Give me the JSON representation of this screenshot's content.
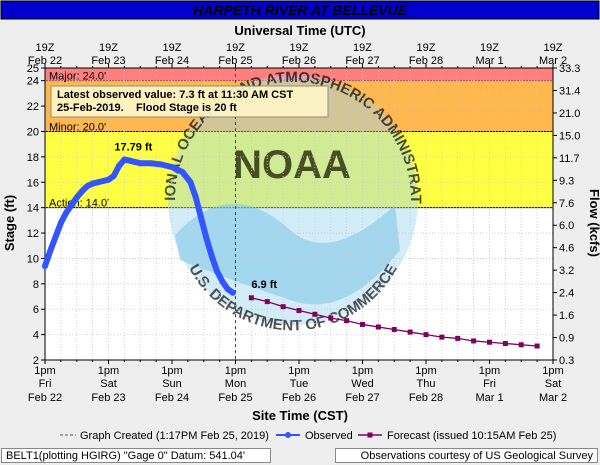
{
  "title": "HARPETH RIVER AT BELLEVUE",
  "top_axis_title": "Universal Time (UTC)",
  "bottom_axis_title": "Site Time (CST)",
  "ylabel_left": "Stage (ft)",
  "ylabel_right": "Flow (kcfs)",
  "watermark_text": "NATIONAL OCEANIC AND ATMOSPHERIC ADMINISTRATION",
  "watermark_bottom_text": "U.S. DEPARTMENT OF COMMERCE",
  "logo_text": "NOAA",
  "legend": {
    "graph_created": "Graph Created (1:17PM Feb 25, 2019)",
    "observed": "Observed",
    "forecast": "Forecast (issued 10:15AM Feb 25)"
  },
  "footer_left": "BELT1(plotting HGIRG) \"Gage 0\" Datum: 541.04'",
  "footer_right": "Observations courtesy of US Geological Survey",
  "info_box": {
    "line1": "Latest observed value: 7.3 ft at 11:30 AM CST",
    "line2_date": "25-Feb-2019.",
    "line2_flood": "Flood Stage is 20 ft"
  },
  "colors": {
    "major": "#ff7f7f",
    "moderate": "#ffb84d",
    "minor": "#ffff44",
    "action": "#ffffff",
    "observed": "#3355ff",
    "forecast": "#800060",
    "title_bg": "#0000cc",
    "info_text": "#3333ff"
  },
  "chart_data": {
    "type": "line",
    "title": "HARPETH RIVER AT BELLEVUE",
    "xlabel": "Site Time (CST)",
    "ylabel": "Stage (ft)",
    "y2label": "Flow (kcfs)",
    "ylim": [
      2,
      25
    ],
    "xlim_hours_from_feb22_1pm": [
      0,
      168
    ],
    "left_ticks": [
      2,
      4,
      6,
      8,
      10,
      12,
      14,
      16,
      18,
      20,
      22,
      24,
      25
    ],
    "right_ticks": [
      {
        "stage": 2.3,
        "label": "0.3"
      },
      {
        "stage": 4.3,
        "label": "0.9"
      },
      {
        "stage": 6.3,
        "label": "1.6"
      },
      {
        "stage": 8.3,
        "label": "2.4"
      },
      {
        "stage": 10.3,
        "label": "3.2"
      },
      {
        "stage": 12.3,
        "label": "4.6"
      },
      {
        "stage": 14.3,
        "label": "6.0"
      },
      {
        "stage": 16.3,
        "label": "7.6"
      },
      {
        "stage": 18.3,
        "label": "9.3"
      },
      {
        "stage": 20.3,
        "label": "11.7"
      },
      {
        "stage": 22.3,
        "label": "15.0"
      },
      {
        "stage": 24.3,
        "label": "21.0"
      },
      {
        "stage": 26.3,
        "label": "31.4"
      },
      {
        "stage": 28.3,
        "label": "33.3"
      }
    ],
    "top_ticks": [
      {
        "t": 0,
        "hour": "19Z",
        "date": "Feb 22"
      },
      {
        "t": 24,
        "hour": "19Z",
        "date": "Feb 23"
      },
      {
        "t": 48,
        "hour": "19Z",
        "date": "Feb 24"
      },
      {
        "t": 72,
        "hour": "19Z",
        "date": "Feb 25"
      },
      {
        "t": 96,
        "hour": "19Z",
        "date": "Feb 26"
      },
      {
        "t": 120,
        "hour": "19Z",
        "date": "Feb 27"
      },
      {
        "t": 144,
        "hour": "19Z",
        "date": "Feb 28"
      },
      {
        "t": 168,
        "hour": "19Z",
        "date": "Mar 1"
      },
      {
        "t": 192,
        "hour": "19Z",
        "date": "Mar 2"
      }
    ],
    "bottom_ticks": [
      {
        "t": 0,
        "time": "1pm",
        "day": "Fri",
        "date": "Feb 22"
      },
      {
        "t": 24,
        "time": "1pm",
        "day": "Sat",
        "date": "Feb 23"
      },
      {
        "t": 48,
        "time": "1pm",
        "day": "Sun",
        "date": "Feb 24"
      },
      {
        "t": 72,
        "time": "1pm",
        "day": "Mon",
        "date": "Feb 25"
      },
      {
        "t": 96,
        "time": "1pm",
        "day": "Tue",
        "date": "Feb 26"
      },
      {
        "t": 120,
        "time": "1pm",
        "day": "Wed",
        "date": "Feb 27"
      },
      {
        "t": 144,
        "time": "1pm",
        "day": "Thu",
        "date": "Feb 28"
      },
      {
        "t": 168,
        "time": "1pm",
        "day": "Fri",
        "date": "Mar 1"
      },
      {
        "t": 192,
        "time": "1pm",
        "day": "Sat",
        "date": "Mar 2"
      }
    ],
    "flood_categories": [
      {
        "name": "Major",
        "label": "Major: 24.0'",
        "from": 24,
        "to": 25,
        "color": "#ff7f7f"
      },
      {
        "name": "Moderate",
        "label": "",
        "from": 20,
        "to": 24,
        "color": "#ffb84d"
      },
      {
        "name": "Minor",
        "label": "Minor: 20.0'",
        "from": 14,
        "to": 20,
        "color": "#ffff44"
      },
      {
        "name": "Action",
        "label": "Action: 14.0'",
        "from": 14,
        "to": 14,
        "color": "#ffff44"
      }
    ],
    "graph_created_t": 72,
    "series": [
      {
        "name": "Observed",
        "color": "#3355ff",
        "x": [
          0,
          2,
          4,
          6,
          8,
          10,
          12,
          14,
          16,
          18,
          20,
          22,
          24,
          26,
          28,
          30,
          32,
          34,
          36,
          40,
          44,
          48,
          52,
          55,
          57,
          59,
          61,
          63,
          65,
          67,
          69,
          71
        ],
        "y": [
          9.4,
          10.6,
          11.7,
          12.8,
          13.6,
          14.2,
          14.8,
          15.3,
          15.7,
          15.9,
          16.0,
          16.1,
          16.2,
          16.5,
          17.3,
          17.79,
          17.7,
          17.6,
          17.5,
          17.5,
          17.4,
          17.2,
          16.8,
          16.0,
          14.8,
          13.2,
          11.6,
          10.2,
          9.0,
          8.2,
          7.6,
          7.3
        ]
      },
      {
        "name": "Forecast",
        "color": "#800060",
        "x": [
          78,
          84,
          90,
          96,
          102,
          108,
          114,
          120,
          126,
          132,
          138,
          144,
          150,
          156,
          162,
          168,
          174,
          180,
          186
        ],
        "y": [
          6.9,
          6.6,
          6.2,
          5.9,
          5.6,
          5.3,
          5.1,
          4.8,
          4.6,
          4.4,
          4.2,
          4.0,
          3.8,
          3.7,
          3.5,
          3.4,
          3.3,
          3.2,
          3.1
        ]
      }
    ],
    "annotations": [
      {
        "text": "17.79 ft",
        "x": 30,
        "y": 17.79,
        "color": "#3355ff"
      },
      {
        "text": "6.9 ft",
        "x": 78,
        "y": 6.9,
        "color": "#800060"
      }
    ]
  }
}
